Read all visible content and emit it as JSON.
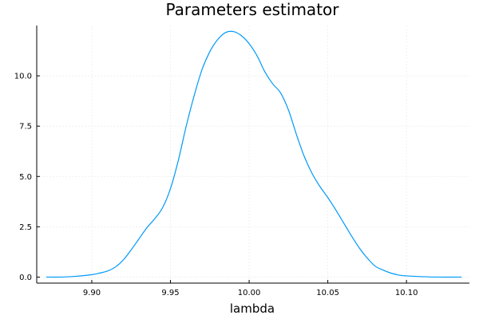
{
  "chart_data": {
    "type": "line",
    "title": "Parameters estimator",
    "xlabel": "lambda",
    "ylabel": "",
    "xlim": [
      9.865,
      10.14
    ],
    "ylim": [
      -0.3,
      12.5
    ],
    "x_ticks": [
      9.9,
      9.95,
      10.0,
      10.05,
      10.1
    ],
    "x_tick_labels": [
      "9.90",
      "9.95",
      "10.00",
      "10.05",
      "10.10"
    ],
    "y_ticks": [
      0.0,
      2.5,
      5.0,
      7.5,
      10.0
    ],
    "y_tick_labels": [
      "0.0",
      "2.5",
      "5.0",
      "7.5",
      "10.0"
    ],
    "grid": true,
    "legend": "none",
    "series": [
      {
        "color": "#009af9",
        "x": [
          9.871,
          9.88,
          9.89,
          9.9,
          9.905,
          9.91,
          9.915,
          9.92,
          9.925,
          9.93,
          9.935,
          9.94,
          9.945,
          9.95,
          9.955,
          9.96,
          9.965,
          9.97,
          9.975,
          9.98,
          9.985,
          9.99,
          9.995,
          10.0,
          10.005,
          10.01,
          10.015,
          10.02,
          10.025,
          10.03,
          10.035,
          10.04,
          10.045,
          10.05,
          10.055,
          10.06,
          10.065,
          10.07,
          10.075,
          10.08,
          10.085,
          10.09,
          10.095,
          10.1,
          10.11,
          10.12,
          10.135
        ],
        "y": [
          0.0,
          0.0,
          0.04,
          0.12,
          0.2,
          0.3,
          0.5,
          0.85,
          1.35,
          1.9,
          2.45,
          2.9,
          3.45,
          4.4,
          5.8,
          7.5,
          9.0,
          10.3,
          11.2,
          11.8,
          12.15,
          12.2,
          12.0,
          11.6,
          11.0,
          10.2,
          9.6,
          9.15,
          8.3,
          7.1,
          6.0,
          5.15,
          4.5,
          3.95,
          3.35,
          2.7,
          2.05,
          1.45,
          0.95,
          0.55,
          0.35,
          0.2,
          0.1,
          0.06,
          0.02,
          0.0,
          0.0
        ]
      }
    ]
  }
}
